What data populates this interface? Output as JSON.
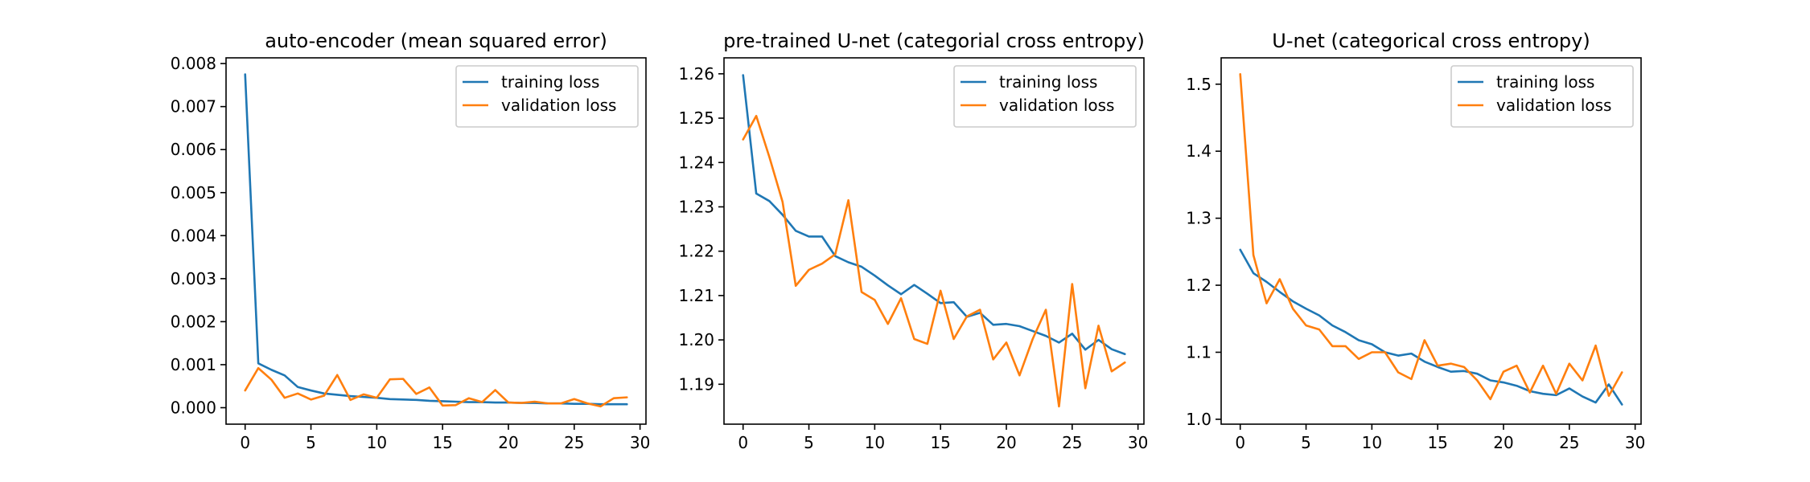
{
  "colors": {
    "training": "#1f77b4",
    "validation": "#ff7f0e"
  },
  "chart_data": [
    {
      "type": "line",
      "title": "auto-encoder (mean squared error)",
      "xlabel": "",
      "ylabel": "",
      "xlim": [
        -1.45,
        30.45
      ],
      "ylim": [
        -0.000383,
        0.008133
      ],
      "xticks": [
        "0",
        "5",
        "10",
        "15",
        "20",
        "25",
        "30"
      ],
      "yticks": [
        "0.000",
        "0.001",
        "0.002",
        "0.003",
        "0.004",
        "0.005",
        "0.006",
        "0.007",
        "0.008"
      ],
      "legend": "upper right",
      "x": [
        0,
        1,
        2,
        3,
        4,
        5,
        6,
        7,
        8,
        9,
        10,
        11,
        12,
        13,
        14,
        15,
        16,
        17,
        18,
        19,
        20,
        21,
        22,
        23,
        24,
        25,
        26,
        27,
        28,
        29
      ],
      "series": [
        {
          "name": "training loss",
          "color_key": "training",
          "values": [
            0.00775,
            0.00103,
            0.00088,
            0.00075,
            0.00048,
            0.0004,
            0.00033,
            0.0003,
            0.00027,
            0.00025,
            0.00023,
            0.0002,
            0.00019,
            0.00018,
            0.00016,
            0.00015,
            0.00014,
            0.00013,
            0.00013,
            0.00012,
            0.00012,
            0.00011,
            0.00011,
            0.0001,
            0.0001,
            9e-05,
            9e-05,
            8e-05,
            8e-05,
            8e-05
          ]
        },
        {
          "name": "validation loss",
          "color_key": "validation",
          "values": [
            0.0004,
            0.00092,
            0.00065,
            0.00023,
            0.00033,
            0.00019,
            0.00028,
            0.00076,
            0.00018,
            0.00031,
            0.00023,
            0.00066,
            0.00067,
            0.00032,
            0.00047,
            5e-05,
            6e-05,
            0.00022,
            0.00013,
            0.00041,
            0.00012,
            0.00011,
            0.00014,
            0.0001,
            0.0001,
            0.0002,
            0.0001,
            3e-05,
            0.00022,
            0.00024
          ]
        }
      ]
    },
    {
      "type": "line",
      "title": "pre-trained U-net (categorial cross entropy)",
      "xlabel": "",
      "ylabel": "",
      "xlim": [
        -1.45,
        30.45
      ],
      "ylim": [
        1.181,
        1.2636
      ],
      "xticks": [
        "0",
        "5",
        "10",
        "15",
        "20",
        "25",
        "30"
      ],
      "yticks": [
        "1.19",
        "1.20",
        "1.21",
        "1.22",
        "1.23",
        "1.24",
        "1.25",
        "1.26"
      ],
      "legend": "upper right",
      "x": [
        0,
        1,
        2,
        3,
        4,
        5,
        6,
        7,
        8,
        9,
        10,
        11,
        12,
        13,
        14,
        15,
        16,
        17,
        18,
        19,
        20,
        21,
        22,
        23,
        24,
        25,
        26,
        27,
        28,
        29
      ],
      "series": [
        {
          "name": "training loss",
          "color_key": "training",
          "values": [
            1.2597,
            1.233,
            1.2313,
            1.2282,
            1.2246,
            1.2233,
            1.2233,
            1.2189,
            1.2175,
            1.2165,
            1.2145,
            1.2123,
            1.2103,
            1.2124,
            1.2104,
            1.2083,
            1.2085,
            1.2052,
            1.2061,
            1.2034,
            1.2036,
            1.2031,
            1.202,
            1.2009,
            1.1994,
            1.2014,
            1.1978,
            1.2,
            1.1979,
            1.1968
          ]
        },
        {
          "name": "validation loss",
          "color_key": "validation",
          "values": [
            1.2452,
            1.2505,
            1.2412,
            1.2311,
            1.2122,
            1.2158,
            1.2172,
            1.2193,
            1.2315,
            1.2108,
            1.209,
            1.2036,
            1.2094,
            1.2002,
            1.1991,
            1.2111,
            1.2002,
            1.2053,
            1.2068,
            1.1956,
            1.1994,
            1.192,
            1.2002,
            1.2068,
            1.185,
            1.2126,
            1.1891,
            1.2032,
            1.1929,
            1.1949
          ]
        }
      ]
    },
    {
      "type": "line",
      "title": "U-net (categorical cross entropy)",
      "xlabel": "",
      "ylabel": "",
      "xlim": [
        -1.45,
        30.45
      ],
      "ylim": [
        0.9927,
        1.5393
      ],
      "xticks": [
        "0",
        "5",
        "10",
        "15",
        "20",
        "25",
        "30"
      ],
      "yticks": [
        "1.0",
        "1.1",
        "1.2",
        "1.3",
        "1.4",
        "1.5"
      ],
      "legend": "upper right",
      "x": [
        0,
        1,
        2,
        3,
        4,
        5,
        6,
        7,
        8,
        9,
        10,
        11,
        12,
        13,
        14,
        15,
        16,
        17,
        18,
        19,
        20,
        21,
        22,
        23,
        24,
        25,
        26,
        27,
        28,
        29
      ],
      "series": [
        {
          "name": "training loss",
          "color_key": "training",
          "values": [
            1.253,
            1.218,
            1.205,
            1.19,
            1.176,
            1.165,
            1.155,
            1.14,
            1.13,
            1.118,
            1.112,
            1.1,
            1.095,
            1.098,
            1.086,
            1.078,
            1.071,
            1.072,
            1.068,
            1.058,
            1.055,
            1.05,
            1.042,
            1.038,
            1.036,
            1.046,
            1.034,
            1.025,
            1.052,
            1.022
          ]
        },
        {
          "name": "validation loss",
          "color_key": "validation",
          "values": [
            1.515,
            1.245,
            1.173,
            1.209,
            1.165,
            1.14,
            1.134,
            1.109,
            1.109,
            1.09,
            1.1,
            1.1,
            1.07,
            1.06,
            1.118,
            1.08,
            1.083,
            1.078,
            1.058,
            1.03,
            1.071,
            1.08,
            1.04,
            1.08,
            1.038,
            1.083,
            1.058,
            1.11,
            1.035,
            1.07
          ]
        }
      ]
    }
  ]
}
